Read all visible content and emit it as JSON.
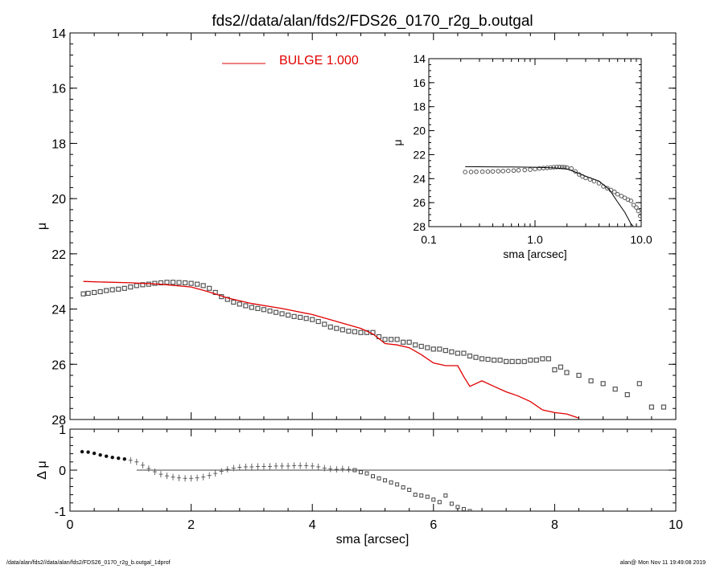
{
  "chart_data": [
    {
      "type": "scatter",
      "title": "fds2//data/alan/fds2/FDS26_0170_r2g_b.outgal",
      "xlabel": "sma [arcsec]",
      "ylabel": "μ",
      "xlim": [
        0,
        10
      ],
      "ylim": [
        28,
        14
      ],
      "y_inverted": true,
      "xticks": [
        0,
        2,
        4,
        6,
        8,
        10
      ],
      "xtick_labels": [
        "0",
        "2",
        "4",
        "6",
        "8",
        "10"
      ],
      "yticks": [
        14,
        16,
        18,
        20,
        22,
        24,
        26,
        28
      ],
      "ytick_labels": [
        "14",
        "16",
        "18",
        "20",
        "22",
        "24",
        "26",
        "28"
      ],
      "legend": {
        "label": "BULGE  1.000",
        "color": "#e00000",
        "position": "top-center"
      },
      "series": [
        {
          "kind": "points",
          "style": "open-square",
          "color": "#555555",
          "x": [
            0.22,
            0.3,
            0.4,
            0.5,
            0.6,
            0.7,
            0.8,
            0.9,
            1.0,
            1.1,
            1.2,
            1.3,
            1.4,
            1.5,
            1.6,
            1.7,
            1.8,
            1.9,
            2.0,
            2.1,
            2.2,
            2.3,
            2.4,
            2.5,
            2.6,
            2.7,
            2.8,
            2.9,
            3.0,
            3.1,
            3.2,
            3.3,
            3.4,
            3.5,
            3.6,
            3.7,
            3.8,
            3.9,
            4.0,
            4.1,
            4.2,
            4.3,
            4.4,
            4.5,
            4.6,
            4.7,
            4.8,
            4.9,
            5.0,
            5.1,
            5.2,
            5.3,
            5.4,
            5.5,
            5.6,
            5.7,
            5.8,
            5.9,
            6.0,
            6.1,
            6.2,
            6.3,
            6.4,
            6.5,
            6.6,
            6.7,
            6.8,
            6.9,
            7.0,
            7.1,
            7.2,
            7.3,
            7.4,
            7.5,
            7.6,
            7.7,
            7.8,
            7.9,
            8.0,
            8.1,
            8.2,
            8.4,
            8.6,
            8.8,
            9.0,
            9.2,
            9.4,
            9.6,
            9.8
          ],
          "y": [
            23.45,
            23.43,
            23.4,
            23.37,
            23.33,
            23.3,
            23.28,
            23.25,
            23.2,
            23.15,
            23.12,
            23.1,
            23.07,
            23.05,
            23.03,
            23.03,
            23.04,
            23.05,
            23.07,
            23.1,
            23.15,
            23.25,
            23.4,
            23.55,
            23.65,
            23.75,
            23.82,
            23.88,
            23.94,
            23.98,
            24.02,
            24.07,
            24.12,
            24.17,
            24.22,
            24.27,
            24.3,
            24.34,
            24.38,
            24.45,
            24.55,
            24.65,
            24.7,
            24.75,
            24.8,
            24.82,
            24.85,
            24.85,
            24.85,
            25.0,
            25.1,
            25.1,
            25.1,
            25.2,
            25.2,
            25.3,
            25.35,
            25.4,
            25.45,
            25.45,
            25.5,
            25.55,
            25.6,
            25.6,
            25.7,
            25.75,
            25.8,
            25.82,
            25.85,
            25.85,
            25.9,
            25.9,
            25.9,
            25.9,
            25.85,
            25.85,
            25.8,
            25.8,
            26.2,
            26.1,
            26.3,
            26.4,
            26.6,
            26.7,
            26.9,
            27.1,
            26.7,
            27.55,
            27.55
          ]
        },
        {
          "kind": "line",
          "name": "BULGE  1.000",
          "color": "#e00000",
          "x": [
            0.22,
            0.5,
            1.0,
            1.5,
            2.0,
            2.2,
            2.4,
            2.6,
            3.0,
            3.5,
            4.0,
            4.4,
            4.8,
            5.0,
            5.2,
            5.4,
            5.6,
            5.8,
            6.0,
            6.2,
            6.4,
            6.5,
            6.6,
            6.8,
            7.0,
            7.2,
            7.4,
            7.6,
            7.8,
            8.0,
            8.2,
            8.4
          ],
          "y": [
            23.0,
            23.02,
            23.05,
            23.1,
            23.2,
            23.32,
            23.45,
            23.6,
            23.8,
            23.98,
            24.2,
            24.45,
            24.7,
            24.9,
            25.25,
            25.3,
            25.4,
            25.65,
            25.95,
            26.05,
            26.05,
            26.45,
            26.8,
            26.6,
            26.8,
            27.0,
            27.15,
            27.35,
            27.65,
            27.75,
            27.8,
            27.95
          ]
        }
      ]
    },
    {
      "type": "scatter",
      "xlabel": "sma [arcsec]",
      "ylabel": "Δ μ",
      "xlim": [
        0,
        10
      ],
      "ylim": [
        -1,
        1
      ],
      "yticks": [
        -1,
        0,
        1
      ],
      "ytick_labels": [
        "-1",
        "0",
        "1"
      ],
      "series": [
        {
          "kind": "points",
          "style": "cross-with-error",
          "color": "#444444",
          "x": [
            0.2,
            0.3,
            0.4,
            0.5,
            0.6,
            0.7,
            0.8,
            0.9,
            1.0,
            1.1,
            1.2,
            1.3,
            1.4,
            1.5,
            1.6,
            1.7,
            1.8,
            1.9,
            2.0,
            2.1,
            2.2,
            2.3,
            2.4,
            2.5,
            2.6,
            2.7,
            2.8,
            2.9,
            3.0,
            3.1,
            3.2,
            3.3,
            3.4,
            3.5,
            3.6,
            3.7,
            3.8,
            3.9,
            4.0,
            4.1,
            4.2,
            4.3,
            4.4,
            4.5,
            4.6,
            4.7,
            4.8,
            4.9,
            5.0,
            5.1,
            5.2,
            5.3,
            5.4,
            5.5,
            5.6,
            5.7,
            5.8,
            5.9,
            6.0,
            6.1,
            6.2,
            6.3,
            6.4,
            6.5,
            6.6,
            6.7,
            6.8,
            6.9,
            7.0
          ],
          "y": [
            0.45,
            0.44,
            0.41,
            0.37,
            0.34,
            0.31,
            0.29,
            0.27,
            0.24,
            0.2,
            0.12,
            0.04,
            -0.04,
            -0.1,
            -0.14,
            -0.17,
            -0.19,
            -0.2,
            -0.2,
            -0.19,
            -0.17,
            -0.13,
            -0.08,
            -0.03,
            0.02,
            0.05,
            0.07,
            0.08,
            0.08,
            0.09,
            0.09,
            0.09,
            0.1,
            0.1,
            0.1,
            0.11,
            0.11,
            0.11,
            0.1,
            0.08,
            0.05,
            0.03,
            0.02,
            0.03,
            0.02,
            0.0,
            -0.05,
            -0.08,
            -0.15,
            -0.2,
            -0.25,
            -0.3,
            -0.35,
            -0.42,
            -0.48,
            -0.6,
            -0.62,
            -0.65,
            -0.72,
            -0.78,
            -0.62,
            -0.82,
            -0.9,
            -0.95,
            -1.0,
            -1.05,
            -1.05,
            -1.1,
            -1.1
          ]
        }
      ],
      "reference_line": {
        "y": 0,
        "x_from": 1.1,
        "x_to": 10
      }
    },
    {
      "type": "scatter",
      "xlabel": "sma [arcsec]",
      "ylabel": "μ",
      "xscale": "log",
      "xlim": [
        0.1,
        10
      ],
      "xticks": [
        0.1,
        1.0,
        10.0
      ],
      "xtick_labels": [
        "0.1",
        "1.0",
        "10.0"
      ],
      "ylim": [
        28,
        14
      ],
      "y_inverted": true,
      "yticks": [
        14,
        16,
        18,
        20,
        22,
        24,
        26,
        28
      ],
      "ytick_labels": [
        "14",
        "16",
        "18",
        "20",
        "22",
        "24",
        "26",
        "28"
      ],
      "series": [
        {
          "kind": "points",
          "style": "open-circle",
          "color": "#555555",
          "x": [
            0.22,
            0.25,
            0.28,
            0.32,
            0.36,
            0.4,
            0.45,
            0.5,
            0.56,
            0.63,
            0.7,
            0.8,
            0.9,
            1.0,
            1.1,
            1.2,
            1.3,
            1.4,
            1.5,
            1.6,
            1.7,
            1.8,
            1.9,
            2.0,
            2.2,
            2.4,
            2.6,
            2.8,
            3.0,
            3.3,
            3.6,
            4.0,
            4.4,
            4.8,
            5.2,
            5.6,
            6.0,
            6.5,
            7.0,
            7.5,
            8.0,
            8.5,
            9.0,
            9.4,
            9.8
          ],
          "y": [
            23.45,
            23.44,
            23.43,
            23.42,
            23.41,
            23.4,
            23.38,
            23.37,
            23.35,
            23.33,
            23.3,
            23.28,
            23.25,
            23.2,
            23.15,
            23.12,
            23.1,
            23.07,
            23.05,
            23.03,
            23.03,
            23.04,
            23.05,
            23.07,
            23.15,
            23.4,
            23.65,
            23.82,
            23.94,
            24.07,
            24.22,
            24.38,
            24.65,
            24.8,
            24.95,
            25.1,
            25.3,
            25.45,
            25.6,
            25.75,
            25.85,
            26.2,
            26.4,
            26.7,
            27.1
          ]
        },
        {
          "kind": "line",
          "color": "#000000",
          "x": [
            0.22,
            0.5,
            1.0,
            1.5,
            2.0,
            2.4,
            3.0,
            4.0,
            5.0,
            6.0,
            7.0,
            8.0,
            8.4
          ],
          "y": [
            23.0,
            23.02,
            23.05,
            23.1,
            23.2,
            23.45,
            23.8,
            24.2,
            24.9,
            25.95,
            26.8,
            27.75,
            27.95
          ]
        }
      ]
    }
  ],
  "footer": {
    "path": "/data/alan/fds2//data/alan/fds2/FDS26_0170_r2g_b.outgal_1dprof",
    "stamp": "alan@  Mon Nov 11 19:49:08 2019"
  }
}
